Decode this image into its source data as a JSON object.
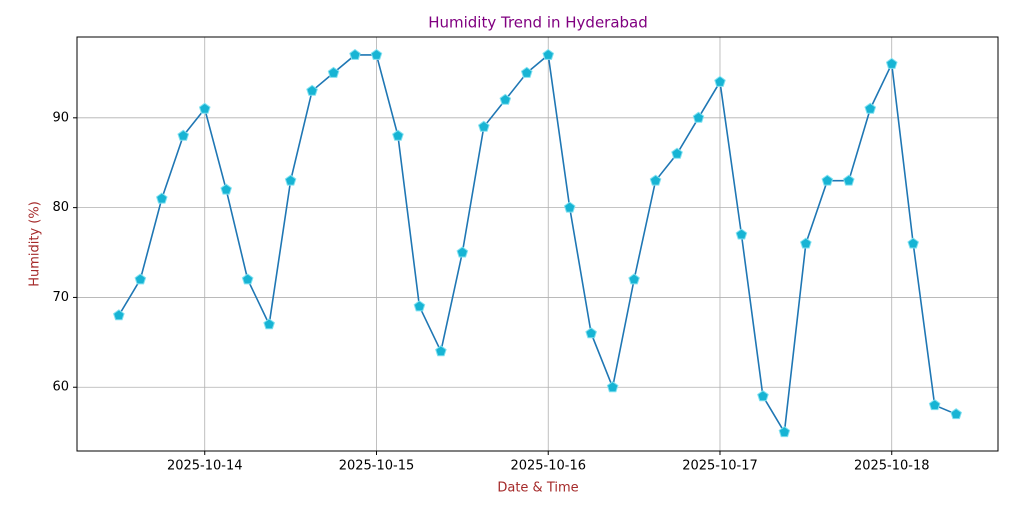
{
  "chart_data": {
    "type": "line",
    "title": "Humidity Trend in Hyderabad",
    "x_label": "Date & Time",
    "y_label": "Humidity (%)",
    "x": [
      "2025-10-13T12:00",
      "2025-10-13T15:00",
      "2025-10-13T18:00",
      "2025-10-13T21:00",
      "2025-10-14T00:00",
      "2025-10-14T03:00",
      "2025-10-14T06:00",
      "2025-10-14T09:00",
      "2025-10-14T12:00",
      "2025-10-14T15:00",
      "2025-10-14T18:00",
      "2025-10-14T21:00",
      "2025-10-15T00:00",
      "2025-10-15T03:00",
      "2025-10-15T06:00",
      "2025-10-15T09:00",
      "2025-10-15T12:00",
      "2025-10-15T15:00",
      "2025-10-15T18:00",
      "2025-10-15T21:00",
      "2025-10-16T00:00",
      "2025-10-16T03:00",
      "2025-10-16T06:00",
      "2025-10-16T09:00",
      "2025-10-16T12:00",
      "2025-10-16T15:00",
      "2025-10-16T18:00",
      "2025-10-16T21:00",
      "2025-10-17T00:00",
      "2025-10-17T03:00",
      "2025-10-17T06:00",
      "2025-10-17T09:00",
      "2025-10-17T12:00",
      "2025-10-17T15:00",
      "2025-10-17T18:00",
      "2025-10-17T21:00",
      "2025-10-18T00:00",
      "2025-10-18T03:00",
      "2025-10-18T06:00",
      "2025-10-18T09:00"
    ],
    "series": [
      {
        "name": "Humidity",
        "color": "#1f77b4",
        "marker_color": "#17b4d4",
        "values": [
          68,
          72,
          81,
          88,
          91,
          82,
          72,
          67,
          83,
          93,
          95,
          97,
          97,
          88,
          69,
          64,
          75,
          89,
          92,
          95,
          97,
          80,
          66,
          60,
          72,
          83,
          86,
          90,
          94,
          77,
          59,
          55,
          76,
          83,
          83,
          91,
          96,
          76,
          58,
          57
        ]
      }
    ],
    "xlim": [
      "2025-10-13T06:09",
      "2025-10-18T14:51"
    ],
    "xticks": [
      "2025-10-14",
      "2025-10-15",
      "2025-10-16",
      "2025-10-17",
      "2025-10-18"
    ],
    "ylim": [
      52.9,
      99.0
    ],
    "yticks": [
      60,
      70,
      80,
      90
    ],
    "grid": true
  }
}
